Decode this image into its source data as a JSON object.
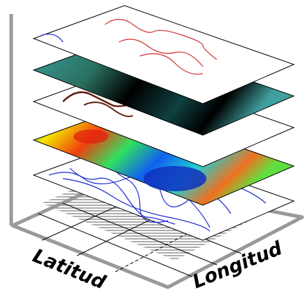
{
  "labels": {
    "latitude": "Latitud",
    "longitude": "Longitud"
  }
}
